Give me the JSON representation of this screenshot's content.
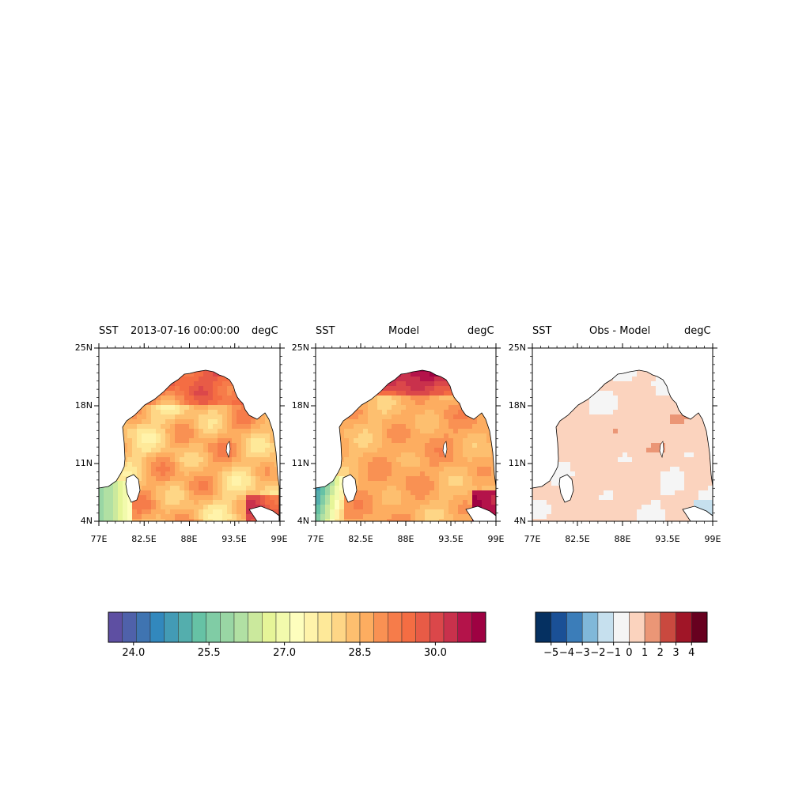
{
  "figure": {
    "panels": [
      {
        "id": "obs",
        "title_left": "SST",
        "title_center": "2013-07-16 00:00:00",
        "title_right": "degC",
        "colormap": "sst"
      },
      {
        "id": "model",
        "title_left": "SST",
        "title_center": "Model",
        "title_right": "degC",
        "colormap": "sst"
      },
      {
        "id": "diff",
        "title_left": "SST",
        "title_center": "Obs - Model",
        "title_right": "degC",
        "colormap": "diff"
      }
    ],
    "lat_ticks": [
      "25N",
      "18N",
      "11N",
      "4N"
    ],
    "lon_ticks": [
      "77E",
      "82.5E",
      "88E",
      "93.5E",
      "99E"
    ],
    "colorbars": {
      "sst": {
        "range": [
          23.5,
          31.0
        ],
        "step": 0.3,
        "tick_labels": [
          "24.0",
          "25.5",
          "27.0",
          "28.5",
          "30.0"
        ],
        "tick_values": [
          24.0,
          25.5,
          27.0,
          28.5,
          30.0
        ],
        "colors": [
          "#5e4fa2",
          "#4f61aa",
          "#3f74b1",
          "#3288bd",
          "#439bb5",
          "#54aead",
          "#66c2a5",
          "#80cca5",
          "#99d6a4",
          "#b1e0a3",
          "#cbe99d",
          "#e6f598",
          "#f2faac",
          "#fefebd",
          "#fff3aa",
          "#fee999",
          "#fed686",
          "#fdbf6f",
          "#fdad60",
          "#f99153",
          "#f67c4a",
          "#f46d43",
          "#e85b46",
          "#db474a",
          "#c9314c",
          "#b4134a",
          "#9e0142"
        ]
      },
      "diff": {
        "range": [
          -6,
          5
        ],
        "tick_labels": [
          "−5",
          "−4",
          "−3",
          "−2",
          "−1",
          "0",
          "1",
          "2",
          "3",
          "4"
        ],
        "tick_values": [
          -5,
          -4,
          -3,
          -2,
          -1,
          0,
          1,
          2,
          3,
          4
        ],
        "colors": [
          "#053061",
          "#1a5096",
          "#3b7db9",
          "#80b8d9",
          "#c6e0ee",
          "#f5f5f5",
          "#fbd3be",
          "#eb9676",
          "#c9493f",
          "#a01527",
          "#67001f"
        ]
      }
    }
  }
}
